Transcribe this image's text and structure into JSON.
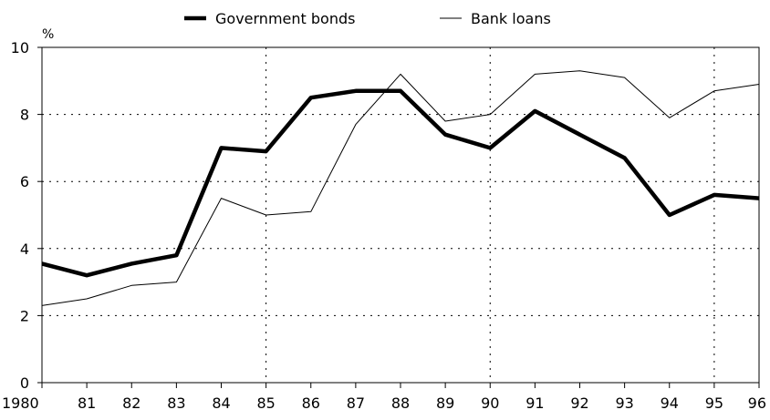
{
  "chart_data": {
    "type": "line",
    "y_unit": "%",
    "x": [
      "1980",
      "81",
      "82",
      "83",
      "84",
      "85",
      "86",
      "87",
      "88",
      "89",
      "90",
      "91",
      "92",
      "93",
      "94",
      "95",
      "96"
    ],
    "ylim": [
      0,
      10
    ],
    "yticks": [
      "0",
      "2",
      "4",
      "6",
      "8",
      "10"
    ],
    "y_tick_values": [
      0,
      2,
      4,
      6,
      8,
      10
    ],
    "grid": "dotted horizontal at each y tick; dotted vertical at 85, 90 and 95",
    "vertical_gridlines_at": [
      "85",
      "90",
      "95"
    ],
    "legend_position": "top-center",
    "series": [
      {
        "name": "Government bonds",
        "style": "thick",
        "color": "#000000",
        "values": [
          3.55,
          3.2,
          3.55,
          3.8,
          7.0,
          6.9,
          8.5,
          8.7,
          8.7,
          7.4,
          7.0,
          8.1,
          7.4,
          6.7,
          5.0,
          5.6,
          5.5
        ]
      },
      {
        "name": "Bank loans",
        "style": "thin",
        "color": "#000000",
        "values": [
          2.3,
          2.5,
          2.9,
          3.0,
          5.5,
          5.0,
          5.1,
          7.7,
          9.2,
          7.8,
          8.0,
          9.2,
          9.3,
          9.1,
          7.9,
          8.7,
          8.9
        ]
      }
    ]
  }
}
